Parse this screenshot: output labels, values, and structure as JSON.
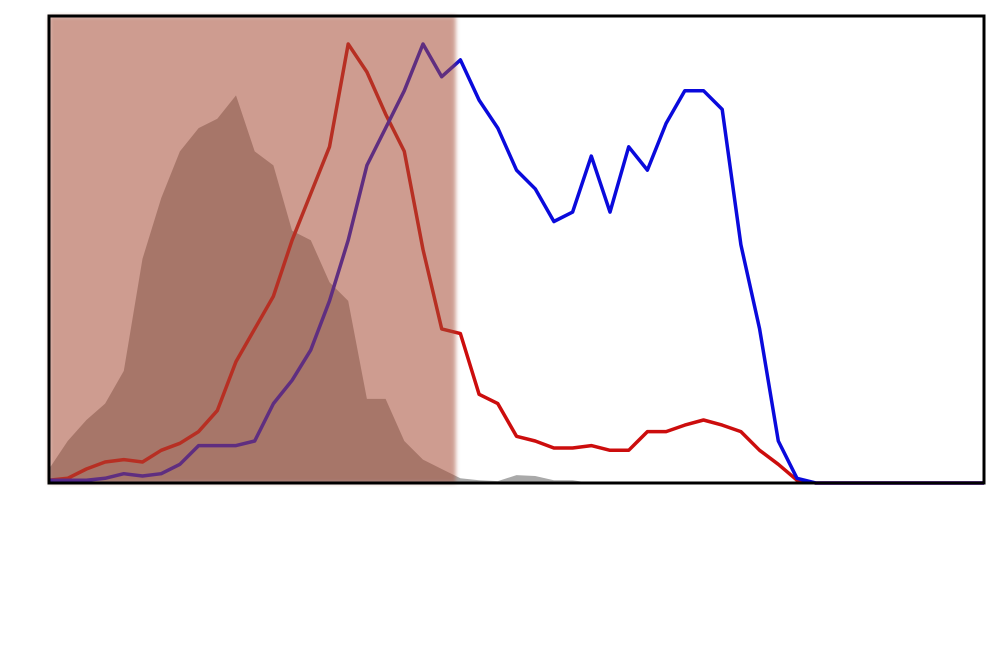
{
  "chart_data": {
    "type": "line",
    "x": [
      0,
      2,
      4,
      6,
      8,
      10,
      12,
      14,
      16,
      18,
      20,
      22,
      24,
      26,
      28,
      30,
      32,
      34,
      36,
      38,
      40,
      42,
      44,
      46,
      48,
      50,
      52,
      54,
      56,
      58,
      60,
      62,
      64,
      66,
      68,
      70,
      72,
      74,
      76,
      78,
      80,
      82,
      84,
      86,
      88,
      90,
      92,
      94,
      96,
      98,
      100
    ],
    "xlim": [
      0,
      100
    ],
    "ylim": [
      0,
      100
    ],
    "shaded_region": {
      "xrange": [
        0,
        43.5
      ],
      "color": "rgba(165,75,55,0.55)"
    },
    "series": [
      {
        "style": "area",
        "color": "#a9a9a9",
        "values": [
          3,
          9,
          13.5,
          17,
          24,
          48,
          61,
          71,
          76,
          78,
          83,
          71,
          68,
          54,
          52,
          43,
          39,
          18,
          18,
          9,
          5,
          3,
          1,
          0.6,
          0.4,
          1.7,
          1.5,
          0.6,
          0.6,
          0,
          0,
          0,
          0,
          0,
          0,
          0,
          0,
          0,
          0,
          0,
          0,
          0,
          0,
          0,
          0,
          0,
          0,
          0,
          0,
          0,
          0
        ]
      },
      {
        "style": "line",
        "color": "#cc0d0d",
        "values": [
          0.6,
          1,
          3,
          4.5,
          5,
          4.5,
          7,
          8.5,
          11,
          15.5,
          26,
          33,
          40,
          52,
          62,
          72,
          94,
          88,
          79,
          71,
          50,
          33,
          32,
          19,
          17,
          10,
          9,
          7.5,
          7.5,
          8,
          7,
          7,
          11,
          11,
          12.4,
          13.5,
          12.4,
          11,
          7,
          4,
          0.6,
          0,
          0,
          0,
          0,
          0,
          0,
          0,
          0,
          0,
          0
        ]
      },
      {
        "style": "line",
        "color": "#0a0adc",
        "values": [
          0.6,
          0.6,
          0.6,
          1,
          2,
          1.5,
          2,
          4,
          8,
          8,
          8,
          9,
          17,
          22,
          28.5,
          39,
          52,
          68,
          76,
          84,
          94,
          87,
          90.6,
          82,
          76,
          67,
          63,
          56,
          58,
          70,
          58,
          72,
          67,
          77,
          84,
          84,
          80,
          51,
          33,
          9,
          1,
          0,
          0,
          0,
          0,
          0,
          0,
          0,
          0,
          0,
          0
        ]
      }
    ]
  }
}
